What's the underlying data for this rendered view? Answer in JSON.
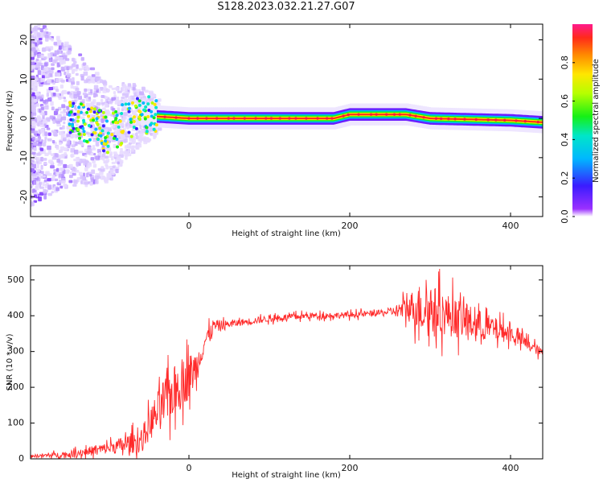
{
  "title": "S128.2023.032.21.27.G07",
  "chart_data": [
    {
      "type": "heatmap",
      "name": "spectrogram",
      "xlabel": "Height of straight line (km)",
      "ylabel": "Frequency (Hz)",
      "xlim": [
        -197,
        440
      ],
      "ylim": [
        -25,
        24
      ],
      "xticks": [
        0,
        200,
        400
      ],
      "yticks": [
        -20,
        -10,
        0,
        10,
        20
      ],
      "colorbar": {
        "label": "Normalized spectral amplitude",
        "range": [
          0,
          1
        ],
        "ticks": [
          0.0,
          0.2,
          0.4,
          0.6,
          0.8
        ]
      },
      "ridge": [
        {
          "x": -190,
          "y": 2
        },
        {
          "x": -150,
          "y": 1
        },
        {
          "x": -120,
          "y": -2
        },
        {
          "x": -100,
          "y": -4
        },
        {
          "x": -80,
          "y": -1
        },
        {
          "x": -60,
          "y": 1
        },
        {
          "x": -40,
          "y": 0.5
        },
        {
          "x": 0,
          "y": 0
        },
        {
          "x": 100,
          "y": 0
        },
        {
          "x": 180,
          "y": 0
        },
        {
          "x": 200,
          "y": 1
        },
        {
          "x": 270,
          "y": 1
        },
        {
          "x": 300,
          "y": 0
        },
        {
          "x": 400,
          "y": -0.5
        },
        {
          "x": 440,
          "y": -1
        }
      ]
    },
    {
      "type": "line",
      "name": "snr",
      "xlabel": "Height of straight line (km)",
      "ylabel": "SNR (10 * v/v)",
      "xlim": [
        -197,
        440
      ],
      "ylim": [
        0,
        540
      ],
      "xticks": [
        0,
        200,
        400
      ],
      "yticks": [
        0,
        100,
        200,
        300,
        400,
        500
      ],
      "color": "#ff2a2a",
      "envelope": [
        {
          "x": -197,
          "y": 8
        },
        {
          "x": -150,
          "y": 12
        },
        {
          "x": -100,
          "y": 30
        },
        {
          "x": -60,
          "y": 50
        },
        {
          "x": -45,
          "y": 110
        },
        {
          "x": -30,
          "y": 160
        },
        {
          "x": -15,
          "y": 200
        },
        {
          "x": 0,
          "y": 230
        },
        {
          "x": 10,
          "y": 260
        },
        {
          "x": 20,
          "y": 330
        },
        {
          "x": 30,
          "y": 370
        },
        {
          "x": 60,
          "y": 380
        },
        {
          "x": 100,
          "y": 392
        },
        {
          "x": 150,
          "y": 400
        },
        {
          "x": 200,
          "y": 402
        },
        {
          "x": 250,
          "y": 410
        },
        {
          "x": 280,
          "y": 425
        },
        {
          "x": 300,
          "y": 420
        },
        {
          "x": 350,
          "y": 380
        },
        {
          "x": 400,
          "y": 350
        },
        {
          "x": 440,
          "y": 295
        }
      ],
      "noise": [
        {
          "x": -197,
          "a": 4
        },
        {
          "x": -100,
          "a": 20
        },
        {
          "x": -55,
          "a": 45
        },
        {
          "x": -30,
          "a": 90
        },
        {
          "x": 0,
          "a": 80
        },
        {
          "x": 20,
          "a": 30
        },
        {
          "x": 50,
          "a": 12
        },
        {
          "x": 250,
          "a": 10
        },
        {
          "x": 270,
          "a": 40
        },
        {
          "x": 290,
          "a": 90
        },
        {
          "x": 350,
          "a": 60
        },
        {
          "x": 400,
          "a": 30
        },
        {
          "x": 440,
          "a": 15
        }
      ]
    }
  ]
}
